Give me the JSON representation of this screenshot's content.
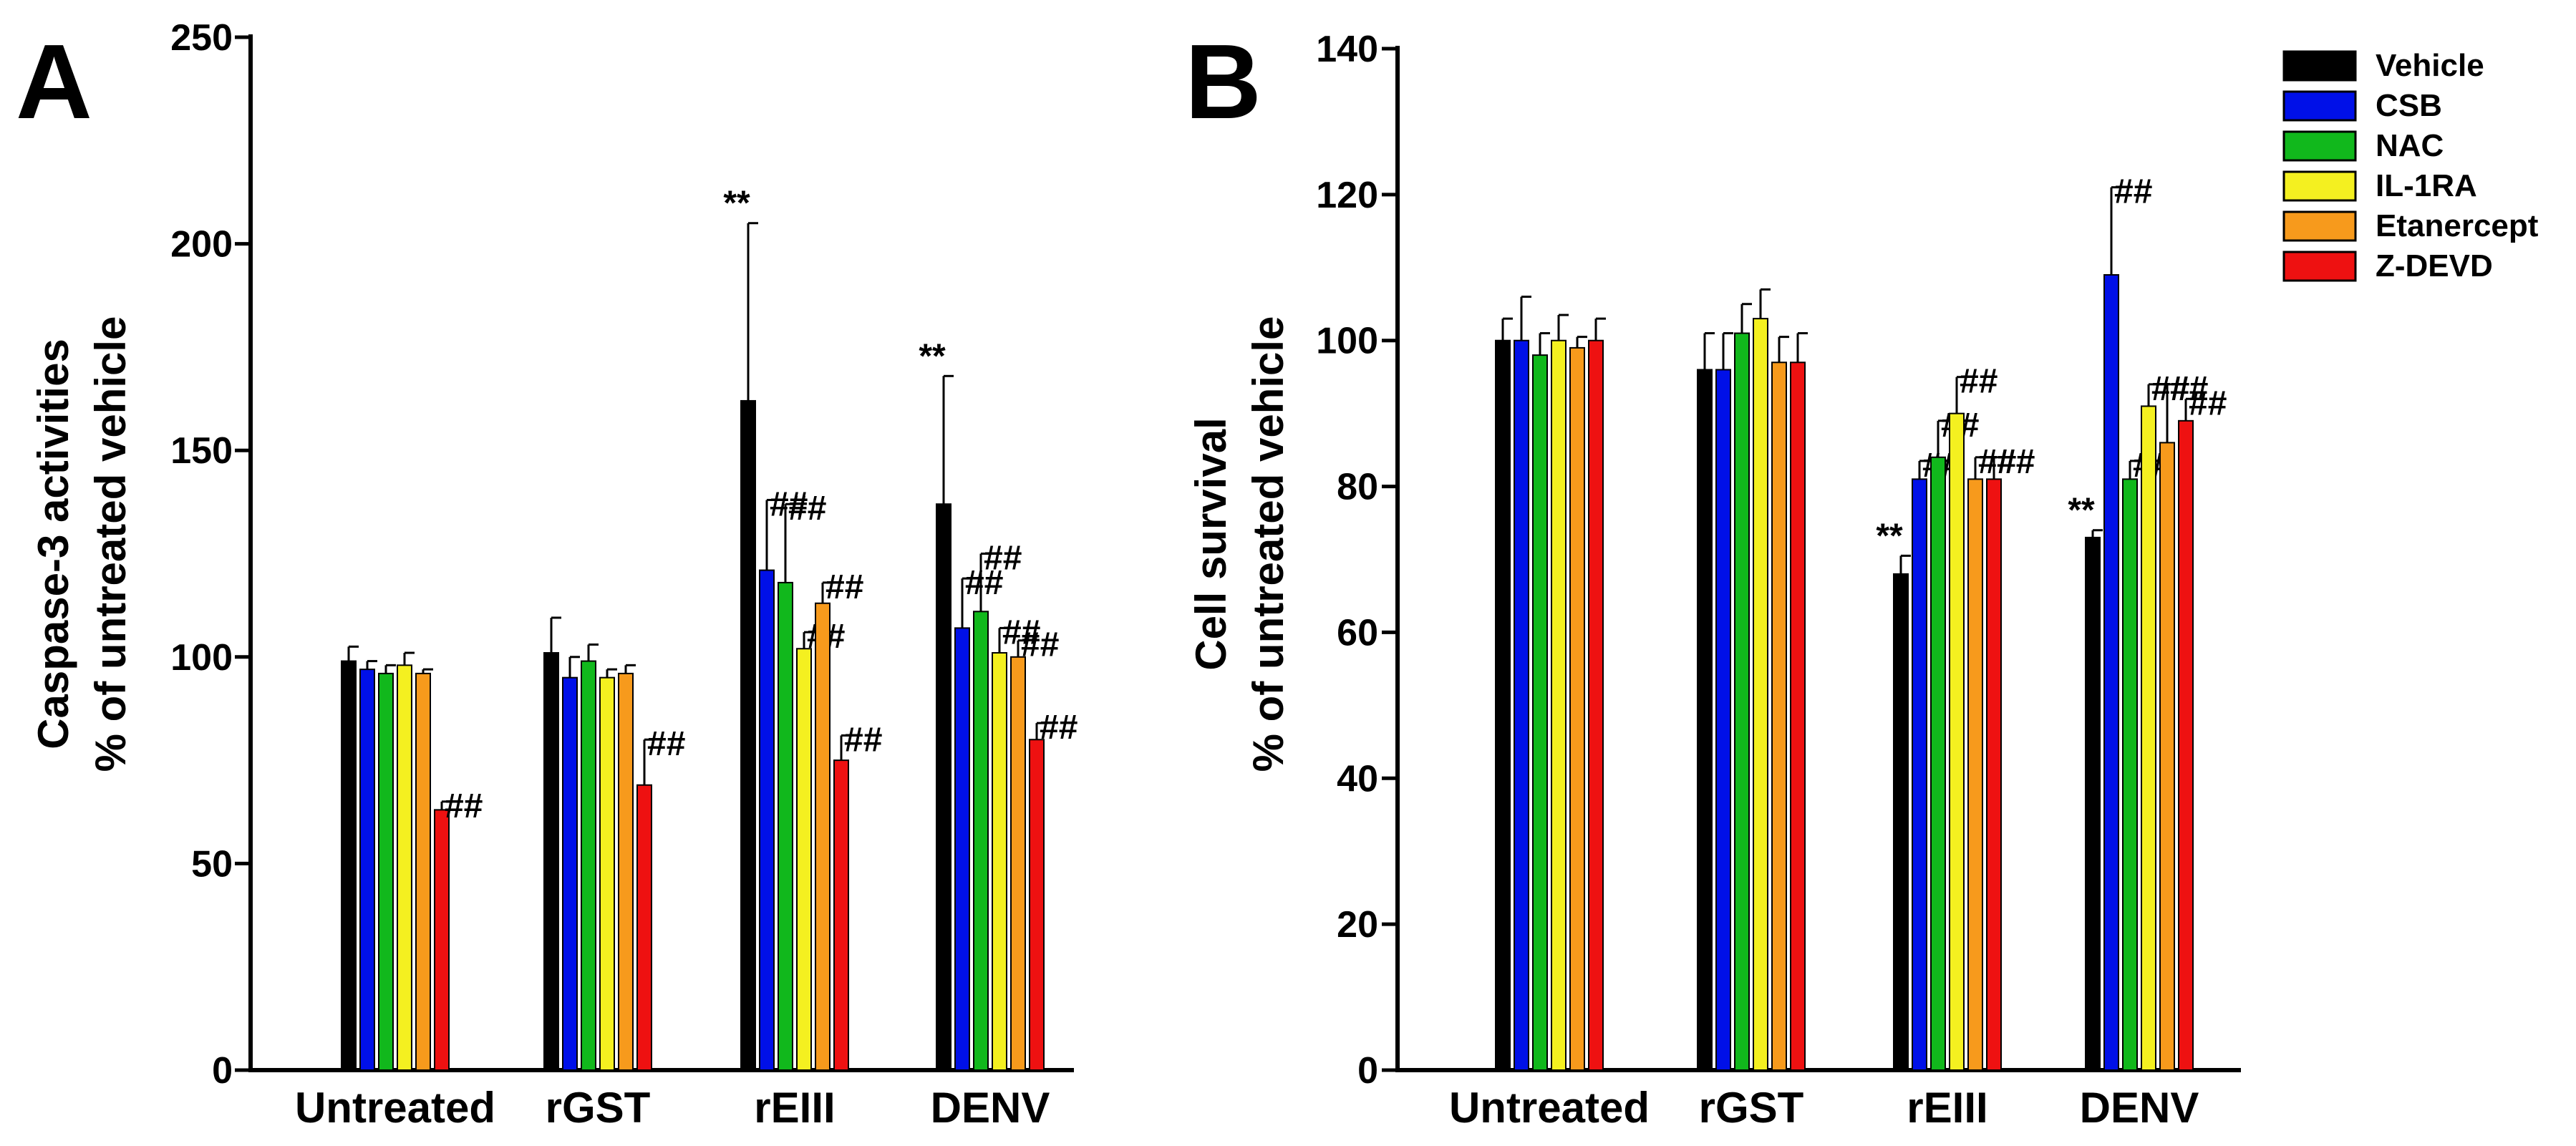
{
  "figure": {
    "legend": [
      {
        "label": "Vehicle",
        "color": "#000000"
      },
      {
        "label": "CSB",
        "color": "#0010e8"
      },
      {
        "label": "NAC",
        "color": "#11b81c"
      },
      {
        "label": "IL-1RA",
        "color": "#f4f020"
      },
      {
        "label": "Etanercept",
        "color": "#f79a1c"
      },
      {
        "label": "Z-DEVD",
        "color": "#ee1111"
      }
    ]
  },
  "chart_data": [
    {
      "type": "bar",
      "panel": "A",
      "title": "",
      "ylabel_line1": "Caspase-3 activities",
      "ylabel_line2": "% of untreated vehicle",
      "xlabel": "",
      "ylim": [
        0,
        250
      ],
      "yticks": [
        0,
        50,
        100,
        150,
        200,
        250
      ],
      "categories": [
        "Untreated",
        "rGST",
        "rEIII",
        "DENV"
      ],
      "series": [
        {
          "name": "Vehicle",
          "values": [
            99,
            101,
            162,
            137
          ],
          "errors": [
            3.5,
            8.5,
            43,
            31
          ],
          "annotations": [
            "",
            "",
            "**",
            "**"
          ]
        },
        {
          "name": "CSB",
          "values": [
            97,
            95,
            121,
            107
          ],
          "errors": [
            2,
            5,
            17,
            12
          ],
          "annotations": [
            "",
            "",
            "##",
            "##"
          ]
        },
        {
          "name": "NAC",
          "values": [
            96,
            99,
            118,
            111
          ],
          "errors": [
            2,
            4,
            19,
            14
          ],
          "annotations": [
            "",
            "",
            "##",
            "##"
          ]
        },
        {
          "name": "IL-1RA",
          "values": [
            98,
            95,
            102,
            101
          ],
          "errors": [
            3,
            2,
            4,
            6
          ],
          "annotations": [
            "",
            "",
            "##",
            "##"
          ]
        },
        {
          "name": "Etanercept",
          "values": [
            96,
            96,
            113,
            100
          ],
          "errors": [
            1,
            2,
            5,
            4
          ],
          "annotations": [
            "",
            "",
            "##",
            "##"
          ]
        },
        {
          "name": "Z-DEVD",
          "values": [
            63,
            69,
            75,
            80
          ],
          "errors": [
            2,
            11,
            6,
            4
          ],
          "annotations": [
            "##",
            "##",
            "##",
            "##"
          ]
        }
      ]
    },
    {
      "type": "bar",
      "panel": "B",
      "title": "",
      "ylabel_line1": "Cell survival",
      "ylabel_line2": "% of untreated vehicle",
      "xlabel": "",
      "ylim": [
        0,
        140
      ],
      "yticks": [
        0,
        20,
        40,
        60,
        80,
        100,
        120,
        140
      ],
      "categories": [
        "Untreated",
        "rGST",
        "rEIII",
        "DENV"
      ],
      "series": [
        {
          "name": "Vehicle",
          "values": [
            100,
            96,
            68,
            73
          ],
          "errors": [
            3,
            5,
            2.5,
            1
          ],
          "annotations": [
            "",
            "",
            "**",
            "**"
          ]
        },
        {
          "name": "CSB",
          "values": [
            100,
            96,
            81,
            109
          ],
          "errors": [
            6,
            5,
            2.5,
            12
          ],
          "annotations": [
            "",
            "",
            "##",
            "##"
          ]
        },
        {
          "name": "NAC",
          "values": [
            98,
            101,
            84,
            81
          ],
          "errors": [
            3,
            4,
            5,
            2.5
          ],
          "annotations": [
            "",
            "",
            "##",
            "##"
          ]
        },
        {
          "name": "IL-1RA",
          "values": [
            100,
            103,
            90,
            91
          ],
          "errors": [
            3.5,
            4,
            5,
            3
          ],
          "annotations": [
            "",
            "",
            "##",
            "##"
          ]
        },
        {
          "name": "Etanercept",
          "values": [
            99,
            97,
            81,
            86
          ],
          "errors": [
            1.5,
            3.5,
            3,
            8
          ],
          "annotations": [
            "",
            "",
            "##",
            "##"
          ]
        },
        {
          "name": "Z-DEVD",
          "values": [
            100,
            97,
            81,
            89
          ],
          "errors": [
            3,
            4,
            3,
            3
          ],
          "annotations": [
            "",
            "",
            "##",
            "##"
          ]
        }
      ]
    }
  ]
}
